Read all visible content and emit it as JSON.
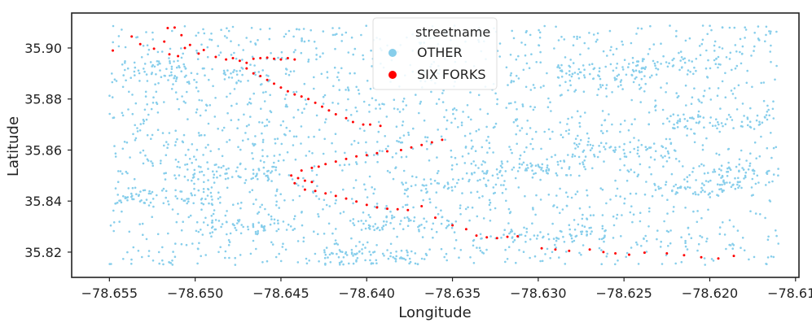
{
  "chart_data": {
    "type": "scatter",
    "xlabel": "Longitude",
    "ylabel": "Latitude",
    "xlim": [
      -78.6572,
      -78.6148
    ],
    "ylim": [
      35.8101,
      35.9137
    ],
    "xticks": [
      -78.655,
      -78.65,
      -78.645,
      -78.64,
      -78.635,
      -78.63,
      -78.625,
      -78.62,
      -78.615
    ],
    "xtick_labels": [
      "−78.655",
      "−78.650",
      "−78.645",
      "−78.640",
      "−78.635",
      "−78.630",
      "−78.625",
      "−78.620",
      "−78.615"
    ],
    "yticks": [
      35.82,
      35.84,
      35.86,
      35.88,
      35.9
    ],
    "ytick_labels": [
      "35.82",
      "35.84",
      "35.86",
      "35.88",
      "35.90"
    ],
    "grid": false,
    "legend": {
      "title": "streetname",
      "placement": "top-center",
      "entries": [
        {
          "name": "OTHER",
          "color": "#87ceeb"
        },
        {
          "name": "SIX FORKS",
          "color": "#ff0000"
        }
      ]
    },
    "background_points": {
      "name": "OTHER",
      "color": "#87ceeb",
      "count": 2600,
      "seed": 1729,
      "extent": {
        "x": [
          -78.655,
          -78.616
        ],
        "y": [
          35.815,
          35.909
        ]
      },
      "note": "densely scattered address points covering the full map extent"
    },
    "series": [
      {
        "name": "SIX FORKS",
        "color": "#ff0000",
        "points": [
          [
            -78.6548,
            35.899
          ],
          [
            -78.6537,
            35.9045
          ],
          [
            -78.6532,
            35.9015
          ],
          [
            -78.6524,
            35.8997
          ],
          [
            -78.6518,
            35.9025
          ],
          [
            -78.6516,
            35.9078
          ],
          [
            -78.6512,
            35.908
          ],
          [
            -78.6508,
            35.905
          ],
          [
            -78.6515,
            35.8975
          ],
          [
            -78.651,
            35.8968
          ],
          [
            -78.6506,
            35.9
          ],
          [
            -78.6503,
            35.9012
          ],
          [
            -78.6498,
            35.8978
          ],
          [
            -78.6495,
            35.8992
          ],
          [
            -78.6488,
            35.8965
          ],
          [
            -78.6482,
            35.8955
          ],
          [
            -78.6478,
            35.896
          ],
          [
            -78.6474,
            35.895
          ],
          [
            -78.647,
            35.8942
          ],
          [
            -78.6466,
            35.8958
          ],
          [
            -78.6462,
            35.896
          ],
          [
            -78.6458,
            35.8962
          ],
          [
            -78.6454,
            35.8958
          ],
          [
            -78.645,
            35.8955
          ],
          [
            -78.6446,
            35.896
          ],
          [
            -78.6442,
            35.8955
          ],
          [
            -78.647,
            35.892
          ],
          [
            -78.6466,
            35.89
          ],
          [
            -78.6462,
            35.889
          ],
          [
            -78.6458,
            35.8875
          ],
          [
            -78.6454,
            35.886
          ],
          [
            -78.645,
            35.8845
          ],
          [
            -78.6446,
            35.883
          ],
          [
            -78.6442,
            35.8818
          ],
          [
            -78.6438,
            35.881
          ],
          [
            -78.6434,
            35.88
          ],
          [
            -78.643,
            35.8785
          ],
          [
            -78.6426,
            35.877
          ],
          [
            -78.6422,
            35.8755
          ],
          [
            -78.6418,
            35.874
          ],
          [
            -78.6412,
            35.8725
          ],
          [
            -78.6408,
            35.871
          ],
          [
            -78.6402,
            35.87
          ],
          [
            -78.6398,
            35.87
          ],
          [
            -78.6392,
            35.8695
          ],
          [
            -78.6432,
            35.8475
          ],
          [
            -78.6436,
            35.848
          ],
          [
            -78.644,
            35.849
          ],
          [
            -78.6444,
            35.85
          ],
          [
            -78.6438,
            35.852
          ],
          [
            -78.6432,
            35.853
          ],
          [
            -78.6428,
            35.8535
          ],
          [
            -78.6424,
            35.8545
          ],
          [
            -78.6418,
            35.8555
          ],
          [
            -78.6412,
            35.8565
          ],
          [
            -78.6406,
            35.8575
          ],
          [
            -78.64,
            35.858
          ],
          [
            -78.6394,
            35.8588
          ],
          [
            -78.6388,
            35.8595
          ],
          [
            -78.638,
            35.86
          ],
          [
            -78.6374,
            35.861
          ],
          [
            -78.6368,
            35.862
          ],
          [
            -78.6362,
            35.863
          ],
          [
            -78.6356,
            35.864
          ],
          [
            -78.6442,
            35.847
          ],
          [
            -78.6436,
            35.8445
          ],
          [
            -78.643,
            35.844
          ],
          [
            -78.6424,
            35.843
          ],
          [
            -78.6418,
            35.842
          ],
          [
            -78.6412,
            35.841
          ],
          [
            -78.6406,
            35.8398
          ],
          [
            -78.64,
            35.8385
          ],
          [
            -78.6394,
            35.8375
          ],
          [
            -78.6388,
            35.837
          ],
          [
            -78.6382,
            35.8368
          ],
          [
            -78.6376,
            35.8365
          ],
          [
            -78.6368,
            35.838
          ],
          [
            -78.636,
            35.8335
          ],
          [
            -78.635,
            35.8305
          ],
          [
            -78.6342,
            35.829
          ],
          [
            -78.6336,
            35.8265
          ],
          [
            -78.633,
            35.8258
          ],
          [
            -78.6324,
            35.8255
          ],
          [
            -78.6318,
            35.826
          ],
          [
            -78.6312,
            35.8262
          ],
          [
            -78.6298,
            35.8215
          ],
          [
            -78.629,
            35.821
          ],
          [
            -78.6282,
            35.8205
          ],
          [
            -78.627,
            35.821
          ],
          [
            -78.6262,
            35.82
          ],
          [
            -78.6255,
            35.8195
          ],
          [
            -78.6247,
            35.819
          ],
          [
            -78.6238,
            35.8198
          ],
          [
            -78.6225,
            35.8195
          ],
          [
            -78.6215,
            35.8188
          ],
          [
            -78.6205,
            35.818
          ],
          [
            -78.6195,
            35.8175
          ],
          [
            -78.6186,
            35.8185
          ]
        ]
      }
    ]
  }
}
